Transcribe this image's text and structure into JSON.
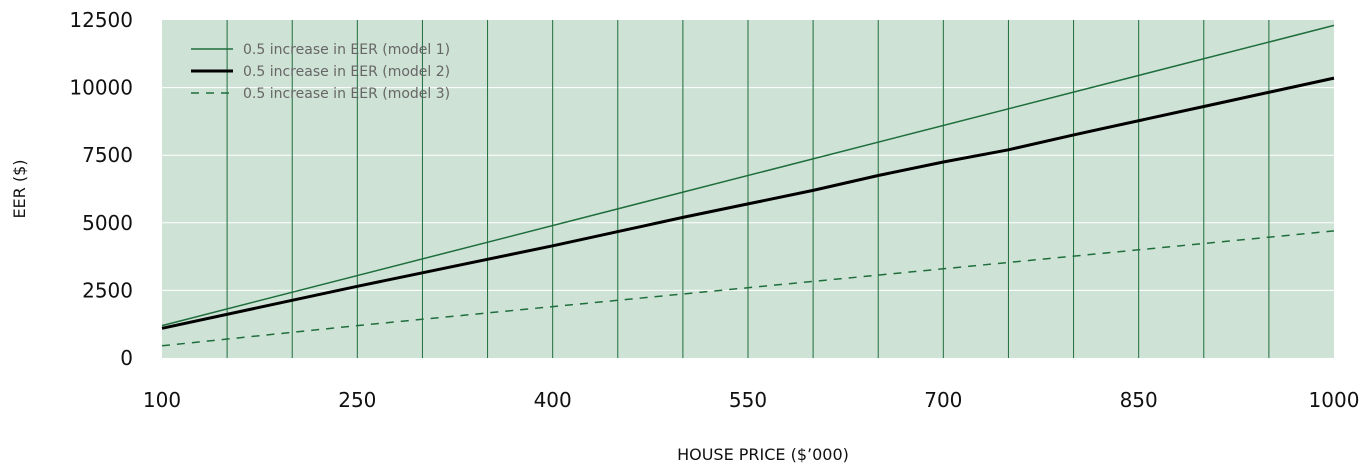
{
  "chart_data": {
    "type": "line",
    "title": "",
    "xlabel": "HOUSE PRICE ($’000)",
    "ylabel": "EER ($)",
    "xlim": [
      100,
      1000
    ],
    "ylim": [
      0,
      12500
    ],
    "x_ticks": [
      100,
      250,
      400,
      550,
      700,
      850,
      1000
    ],
    "y_ticks": [
      0,
      2500,
      5000,
      7500,
      10000,
      12500
    ],
    "x_gridlines": [
      150,
      200,
      250,
      300,
      350,
      400,
      450,
      500,
      550,
      600,
      650,
      700,
      750,
      800,
      850,
      900,
      950
    ],
    "y_gridlines": [
      2500,
      5000,
      7500,
      10000
    ],
    "grid": true,
    "legend_position": "top-left",
    "colors": {
      "plot_background": "#cfe2d6",
      "vertical_grid": "#1e6e3c",
      "horizontal_grid": "#ffffff",
      "model1": "#1e6e3c",
      "model2": "#000000",
      "model3": "#1e6e3c",
      "legend_text": "#666666"
    },
    "series": [
      {
        "name": "0.5 increase in EER (model 1)",
        "style": "solid-thin",
        "x": [
          100,
          1000
        ],
        "y": [
          1200,
          12300
        ]
      },
      {
        "name": "0.5 increase in EER (model 2)",
        "style": "solid-thick",
        "x": [
          100,
          250,
          300,
          400,
          500,
          550,
          600,
          650,
          700,
          750,
          800,
          900,
          1000
        ],
        "y": [
          1100,
          2650,
          3150,
          4150,
          5200,
          5700,
          6200,
          6750,
          7250,
          7700,
          8250,
          9300,
          10350
        ]
      },
      {
        "name": "0.5 increase in EER (model 3)",
        "style": "dashed",
        "x": [
          100,
          250,
          400,
          550,
          700,
          850,
          1000
        ],
        "y": [
          450,
          1200,
          1900,
          2600,
          3300,
          4000,
          4700
        ]
      }
    ]
  }
}
